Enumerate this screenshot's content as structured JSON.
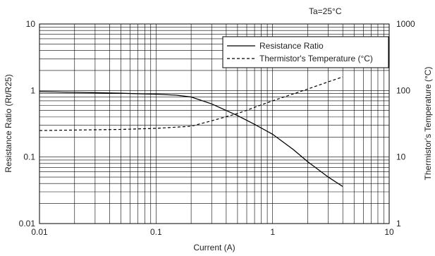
{
  "chart_data": {
    "type": "line",
    "annotation": "Ta=25°C",
    "xlabel": "Current (A)",
    "ylabel_left": "Resistance Ratio (Rt/R25)",
    "ylabel_right": "Thermistor's Temperature (°C)",
    "x_scale": "log",
    "y_left_scale": "log",
    "y_right_scale": "log",
    "xlim": [
      0.01,
      10
    ],
    "ylim_left": [
      0.01,
      10
    ],
    "ylim_right": [
      1,
      1000
    ],
    "x_ticks": [
      "0.01",
      "0.1",
      "1",
      "10"
    ],
    "y_left_ticks": [
      "0.01",
      "0.1",
      "1",
      "10"
    ],
    "y_right_ticks": [
      "1",
      "10",
      "100",
      "1000"
    ],
    "grid": true,
    "legend_position": "top-right",
    "series": [
      {
        "name": "Resistance Ratio",
        "axis": "left",
        "style": "solid",
        "x": [
          0.01,
          0.02,
          0.05,
          0.1,
          0.15,
          0.2,
          0.3,
          0.5,
          0.7,
          1.0,
          1.5,
          2.0,
          3.0,
          4.0
        ],
        "y": [
          0.96,
          0.94,
          0.91,
          0.88,
          0.85,
          0.8,
          0.63,
          0.42,
          0.31,
          0.22,
          0.13,
          0.085,
          0.05,
          0.036
        ]
      },
      {
        "name": "Thermistor's Temperature (°C)",
        "axis": "right",
        "style": "dashed",
        "x": [
          0.01,
          0.05,
          0.1,
          0.2,
          0.3,
          0.5,
          1.0,
          2.0,
          3.0,
          4.0
        ],
        "y": [
          25,
          26,
          27,
          29,
          35,
          45,
          70,
          105,
          135,
          160
        ]
      }
    ]
  }
}
